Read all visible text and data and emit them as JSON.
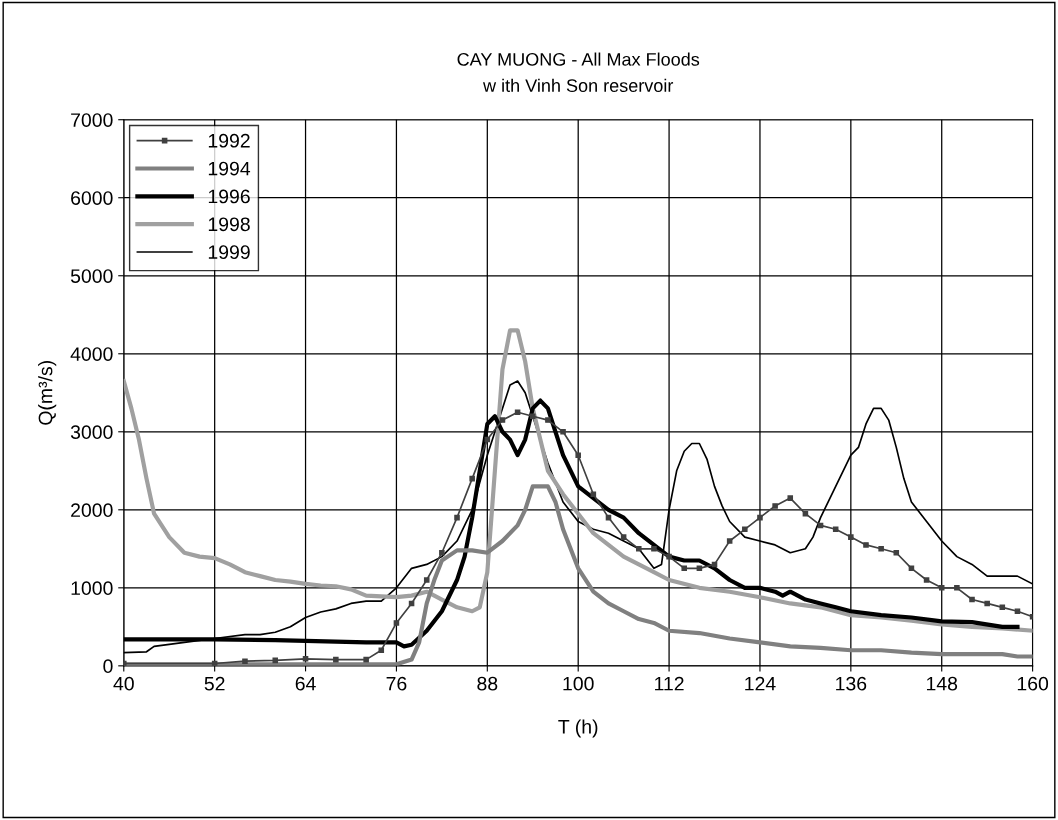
{
  "chart_data": {
    "type": "line",
    "title": "CAY MUONG - All Max Floods",
    "subtitle": "w ith Vinh Son reservoir",
    "xlabel": "T (h)",
    "ylabel": "Q(m³/s)",
    "xlim": [
      40,
      160
    ],
    "xticks": [
      40,
      52,
      64,
      76,
      88,
      100,
      112,
      124,
      136,
      148,
      160
    ],
    "ylim": [
      0,
      7000
    ],
    "yticks": [
      0,
      1000,
      2000,
      3000,
      4000,
      5000,
      6000,
      7000
    ],
    "grid": true,
    "legend": "top left",
    "line_style": "solid",
    "series": [
      {
        "name": "1992",
        "color": "#404040",
        "marker": "square",
        "x": [
          40,
          52,
          56,
          60,
          64,
          68,
          72,
          74,
          76,
          78,
          80,
          82,
          84,
          86,
          88,
          90,
          92,
          94,
          96,
          98,
          100,
          102,
          104,
          106,
          108,
          110,
          112,
          114,
          116,
          118,
          120,
          122,
          124,
          126,
          128,
          130,
          132,
          134,
          136,
          138,
          140,
          142,
          144,
          146,
          148,
          150,
          152,
          154,
          156,
          158,
          160
        ],
        "values": [
          30,
          30,
          60,
          70,
          90,
          80,
          80,
          200,
          550,
          800,
          1100,
          1450,
          1900,
          2400,
          2900,
          3150,
          3250,
          3200,
          3150,
          3000,
          2700,
          2200,
          1900,
          1650,
          1500,
          1500,
          1400,
          1250,
          1250,
          1300,
          1600,
          1750,
          1900,
          2050,
          2150,
          1950,
          1800,
          1750,
          1650,
          1550,
          1500,
          1450,
          1250,
          1100,
          1000,
          1000,
          850,
          800,
          750,
          700,
          630
        ]
      },
      {
        "name": "1994",
        "color": "#808080",
        "marker": "none",
        "x": [
          40,
          76,
          78,
          79,
          80,
          81,
          82,
          84,
          86,
          88,
          90,
          92,
          93,
          94,
          96,
          97,
          98,
          100,
          102,
          104,
          106,
          108,
          110,
          112,
          116,
          120,
          124,
          128,
          132,
          136,
          140,
          144,
          148,
          152,
          156,
          158,
          160
        ],
        "values": [
          20,
          20,
          80,
          300,
          800,
          1100,
          1350,
          1480,
          1480,
          1450,
          1600,
          1800,
          2000,
          2300,
          2300,
          2100,
          1750,
          1250,
          950,
          800,
          700,
          600,
          550,
          450,
          420,
          350,
          300,
          250,
          230,
          200,
          200,
          170,
          150,
          150,
          150,
          120,
          120
        ]
      },
      {
        "name": "1996",
        "color": "#000000",
        "marker": "none",
        "x": [
          40,
          52,
          60,
          64,
          72,
          76,
          77,
          78,
          80,
          82,
          84,
          85,
          86,
          87,
          88,
          89,
          90,
          91,
          92,
          93,
          94,
          95,
          96,
          97,
          98,
          100,
          102,
          104,
          106,
          108,
          110,
          112,
          114,
          116,
          118,
          120,
          122,
          124,
          126,
          127,
          128,
          130,
          132,
          134,
          136,
          140,
          144,
          148,
          152,
          156,
          158
        ],
        "values": [
          340,
          340,
          330,
          320,
          300,
          300,
          250,
          270,
          450,
          700,
          1100,
          1400,
          1900,
          2500,
          3100,
          3200,
          3000,
          2900,
          2700,
          2900,
          3300,
          3400,
          3300,
          3000,
          2700,
          2300,
          2150,
          2000,
          1900,
          1700,
          1550,
          1400,
          1350,
          1350,
          1250,
          1100,
          1000,
          1000,
          950,
          900,
          950,
          850,
          800,
          750,
          700,
          650,
          620,
          570,
          560,
          500,
          500
        ]
      },
      {
        "name": "1998",
        "color": "#a0a0a0",
        "marker": "none",
        "x": [
          40,
          41,
          42,
          43,
          44,
          46,
          48,
          50,
          52,
          54,
          56,
          58,
          60,
          62,
          64,
          66,
          68,
          70,
          72,
          74,
          76,
          78,
          80,
          82,
          84,
          86,
          87,
          88,
          89,
          90,
          91,
          92,
          93,
          94,
          95,
          96,
          98,
          100,
          102,
          104,
          106,
          108,
          110,
          112,
          116,
          120,
          124,
          128,
          132,
          136,
          140,
          144,
          148,
          152,
          156,
          160
        ],
        "values": [
          3650,
          3300,
          2900,
          2400,
          1950,
          1650,
          1450,
          1400,
          1380,
          1300,
          1200,
          1150,
          1100,
          1080,
          1050,
          1030,
          1020,
          980,
          900,
          890,
          880,
          900,
          950,
          850,
          750,
          700,
          750,
          1200,
          2500,
          3800,
          4300,
          4300,
          3900,
          3300,
          2900,
          2500,
          2200,
          1950,
          1700,
          1550,
          1400,
          1300,
          1200,
          1100,
          1000,
          950,
          880,
          800,
          750,
          650,
          620,
          580,
          530,
          500,
          480,
          450
        ]
      },
      {
        "name": "1999",
        "color": "#000000",
        "marker": "none",
        "x": [
          40,
          43,
          44,
          48,
          52,
          56,
          58,
          60,
          62,
          64,
          66,
          68,
          70,
          72,
          74,
          76,
          78,
          80,
          82,
          84,
          86,
          88,
          90,
          91,
          92,
          93,
          94,
          96,
          98,
          100,
          102,
          104,
          106,
          108,
          110,
          111,
          112,
          113,
          114,
          115,
          116,
          117,
          118,
          119,
          120,
          122,
          124,
          126,
          128,
          130,
          131,
          132,
          134,
          136,
          137,
          138,
          139,
          140,
          141,
          142,
          143,
          144,
          146,
          148,
          150,
          152,
          154,
          156,
          158,
          160
        ],
        "values": [
          170,
          180,
          250,
          300,
          350,
          400,
          400,
          430,
          500,
          620,
          690,
          730,
          800,
          830,
          830,
          1000,
          1250,
          1300,
          1400,
          1600,
          2000,
          2700,
          3300,
          3600,
          3650,
          3500,
          3200,
          2600,
          2100,
          1850,
          1750,
          1700,
          1600,
          1500,
          1250,
          1300,
          2000,
          2500,
          2750,
          2850,
          2850,
          2650,
          2300,
          2050,
          1850,
          1650,
          1600,
          1550,
          1450,
          1500,
          1650,
          1900,
          2300,
          2700,
          2800,
          3100,
          3300,
          3300,
          3150,
          2800,
          2400,
          2100,
          1850,
          1600,
          1400,
          1300,
          1150,
          1150,
          1150,
          1050
        ]
      }
    ]
  }
}
